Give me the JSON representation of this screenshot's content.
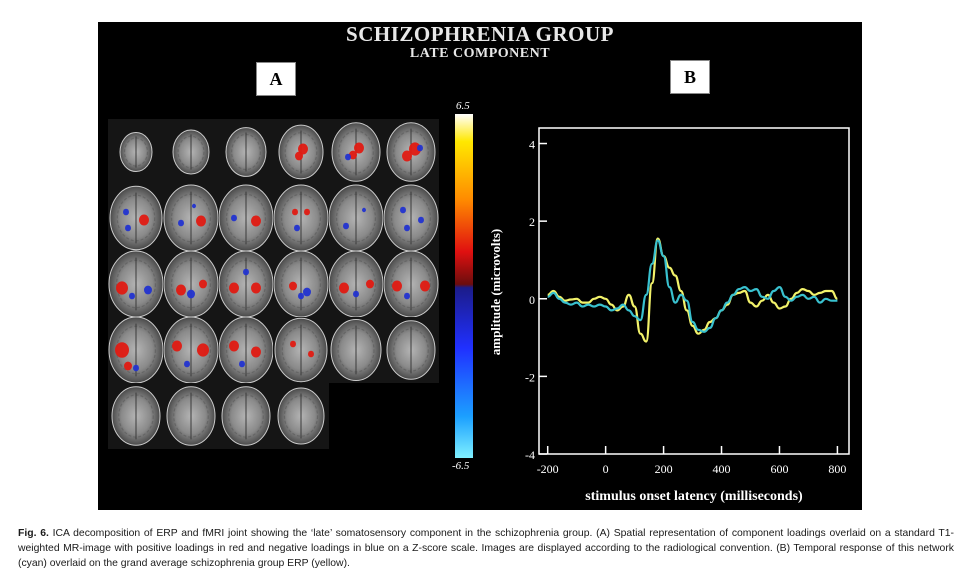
{
  "figure": {
    "title": "SCHIZOPHRENIA GROUP",
    "subtitle": "LATE COMPONENT",
    "panel_a_label": "A",
    "panel_b_label": "B",
    "colorbar": {
      "max": "6.5",
      "min": "-6.5",
      "colors": [
        "#ffffff",
        "#ffe800",
        "#ff8a00",
        "#e01010",
        "#6b0d0d",
        "#1c1c8a",
        "#2030ff",
        "#1ca0ff",
        "#7ff0ff"
      ]
    }
  },
  "chart_data": {
    "type": "line",
    "xlabel": "stimulus onset latency (milliseconds)",
    "ylabel": "amplitude (microvolts)",
    "xlim": [
      -230,
      840
    ],
    "ylim": [
      -4,
      4.4
    ],
    "xticks": [
      -200,
      0,
      200,
      400,
      600,
      800
    ],
    "yticks": [
      -4,
      -2,
      0,
      2,
      4
    ],
    "grid": false,
    "series": [
      {
        "color": "#f2f26a",
        "x": [
          -200,
          -180,
          -160,
          -140,
          -120,
          -100,
          -80,
          -60,
          -40,
          -20,
          0,
          20,
          40,
          60,
          80,
          100,
          120,
          140,
          160,
          180,
          200,
          220,
          240,
          260,
          280,
          300,
          320,
          340,
          360,
          380,
          400,
          420,
          440,
          460,
          480,
          500,
          520,
          540,
          560,
          580,
          600,
          620,
          640,
          660,
          680,
          700,
          720,
          740,
          760,
          780,
          800
        ],
        "values": [
          0.1,
          0.2,
          0.05,
          -0.05,
          -0.02,
          0.0,
          -0.1,
          -0.1,
          0.0,
          0.05,
          0.0,
          -0.15,
          -0.3,
          -0.2,
          0.1,
          -0.2,
          -0.9,
          -1.1,
          0.4,
          1.55,
          1.1,
          0.8,
          0.6,
          0.2,
          -0.3,
          -0.7,
          -0.9,
          -0.8,
          -0.6,
          -0.5,
          -0.3,
          -0.15,
          0.1,
          0.15,
          0.2,
          -0.1,
          -0.2,
          -0.05,
          0.1,
          -0.1,
          -0.25,
          -0.2,
          0.0,
          0.15,
          0.25,
          0.2,
          0.1,
          0.15,
          0.2,
          0.2,
          0.0
        ]
      },
      {
        "color": "#39c1cf",
        "x": [
          -200,
          -180,
          -160,
          -140,
          -120,
          -100,
          -80,
          -60,
          -40,
          -20,
          0,
          20,
          40,
          60,
          80,
          100,
          120,
          140,
          160,
          180,
          200,
          220,
          240,
          260,
          280,
          300,
          320,
          340,
          360,
          380,
          400,
          420,
          440,
          460,
          480,
          500,
          520,
          540,
          560,
          580,
          600,
          620,
          640,
          660,
          680,
          700,
          720,
          740,
          760,
          780,
          800
        ],
        "values": [
          0.05,
          0.15,
          0.0,
          -0.1,
          -0.15,
          -0.1,
          -0.2,
          -0.15,
          -0.2,
          -0.15,
          -0.2,
          -0.3,
          -0.25,
          -0.15,
          -0.3,
          -0.45,
          -0.55,
          0.1,
          0.9,
          1.5,
          1.1,
          0.3,
          -0.1,
          0.1,
          -0.05,
          -0.6,
          -0.8,
          -0.85,
          -0.75,
          -0.5,
          -0.3,
          -0.1,
          0.1,
          0.25,
          0.3,
          0.2,
          0.25,
          0.05,
          0.0,
          0.2,
          0.3,
          0.05,
          -0.05,
          0.05,
          0.1,
          0.0,
          0.05,
          -0.1,
          0.0,
          -0.05,
          -0.05
        ]
      }
    ]
  },
  "caption": {
    "label": "Fig. 6.",
    "text": "ICA decomposition of ERP and fMRI joint showing the ‘late’ somatosensory component in the schizophrenia group. (A) Spatial representation of component loadings overlaid on a standard T1-weighted MR-image with positive loadings in red and negative loadings in blue on a Z-score scale. Images are displayed according to the radiological convention. (B) Temporal response of this network (cyan) overlaid on the grand average schizophrenia group ERP (yellow)."
  }
}
